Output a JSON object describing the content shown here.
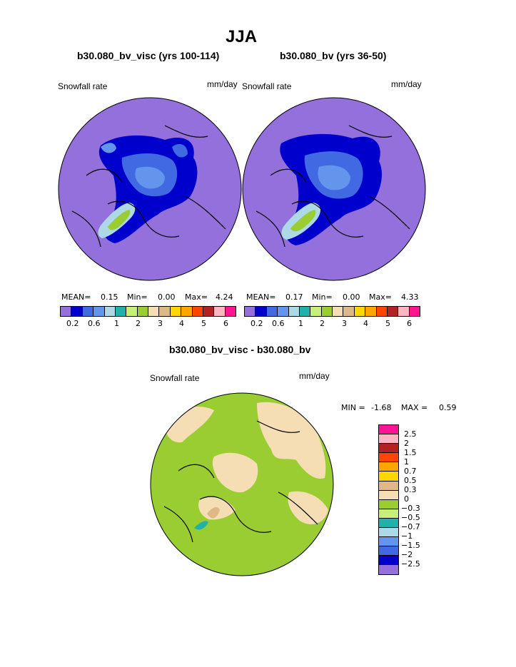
{
  "figure": {
    "title": "JJA",
    "panel_left_title": "b30.080_bv_visc (yrs 100-114)",
    "panel_right_title": "b30.080_bv (yrs 36-50)",
    "diff_title": "b30.080_bv_visc - b30.080_bv"
  },
  "colors": {
    "seq": [
      "#9370DB",
      "#0000CD",
      "#4169E1",
      "#6495ED",
      "#ADD8E6",
      "#20B2AA",
      "#C6F07A",
      "#9ACD32",
      "#F5DEB3",
      "#DEB887",
      "#FFD700",
      "#FFA500",
      "#FF4500",
      "#B22222",
      "#FFB6C1",
      "#FF1493"
    ],
    "div": [
      "#FF1493",
      "#FFB6C1",
      "#B22222",
      "#FF4500",
      "#FFA500",
      "#FFD700",
      "#DEB887",
      "#F5DEB3",
      "#9ACD32",
      "#C6F07A",
      "#20B2AA",
      "#ADD8E6",
      "#6495ED",
      "#4169E1",
      "#0000CD",
      "#9370DB"
    ],
    "coast": "#000000"
  },
  "chart_data": [
    {
      "type": "heatmap",
      "title": "b30.080_bv_visc (yrs 100-114)",
      "variable": "Snowfall rate",
      "units": "mm/day",
      "projection": "polar stereographic (north)",
      "stats": {
        "mean_label": "MEAN=",
        "mean": "0.15",
        "min_label": "Min=",
        "min": "0.00",
        "max_label": "Max=",
        "max": "4.24"
      },
      "colorbar_ticks": [
        "0.2",
        "0.6",
        "1",
        "2",
        "3",
        "4",
        "5",
        "6"
      ]
    },
    {
      "type": "heatmap",
      "title": "b30.080_bv (yrs 36-50)",
      "variable": "Snowfall rate",
      "units": "mm/day",
      "projection": "polar stereographic (north)",
      "stats": {
        "mean_label": "MEAN=",
        "mean": "0.17",
        "min_label": "Min=",
        "min": "0.00",
        "max_label": "Max=",
        "max": "4.33"
      },
      "colorbar_ticks": [
        "0.2",
        "0.6",
        "1",
        "2",
        "3",
        "4",
        "5",
        "6"
      ]
    },
    {
      "type": "heatmap",
      "title": "b30.080_bv_visc - b30.080_bv",
      "variable": "Snowfall rate",
      "units": "mm/day",
      "projection": "polar stereographic (north)",
      "stats": {
        "min_label": "MIN =",
        "min": "-1.68",
        "max_label": "MAX =",
        "max": "0.59"
      },
      "colorbar_labels": [
        "2.5",
        "2",
        "1.5",
        "1",
        "0.7",
        "0.5",
        "0.3",
        "0",
        "−0.3",
        "−0.5",
        "−0.7",
        "−1",
        "−1.5",
        "−2",
        "−2.5"
      ]
    }
  ]
}
